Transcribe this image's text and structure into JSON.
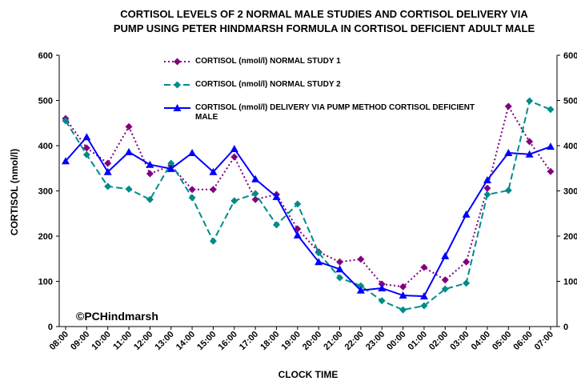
{
  "chart_data": {
    "type": "line",
    "title": [
      "CORTISOL LEVELS OF 2 NORMAL MALE STUDIES AND CORTISOL DELIVERY VIA",
      "PUMP USING PETER HINDMARSH FORMULA IN CORTISOL DEFICIENT ADULT MALE"
    ],
    "x_label": "CLOCK TIME",
    "y_label": "CORTISOL (nmol/l)",
    "annotation": "©PCHindmarsh",
    "categories": [
      "08:00",
      "09:00",
      "10:00",
      "11:00",
      "12:00",
      "13:00",
      "14:00",
      "15:00",
      "16:00",
      "17:00",
      "18:00",
      "19:00",
      "20:00",
      "21:00",
      "22:00",
      "23:00",
      "00:00",
      "01:00",
      "02:00",
      "03:00",
      "04:00",
      "05:00",
      "06:00",
      "07:00"
    ],
    "ylim": [
      0,
      600
    ],
    "yticks": [
      0,
      100,
      200,
      300,
      400,
      500,
      600
    ],
    "y2lim": [
      0,
      600
    ],
    "y2ticks": [
      0,
      100,
      200,
      300,
      400,
      500,
      600
    ],
    "grid": false,
    "series": [
      {
        "name": "CORTISOL (nmol/l) NORMAL STUDY 1",
        "color": "#800080",
        "dash": "dotted",
        "marker": "diamond",
        "values": [
          460,
          395,
          361,
          442,
          338,
          356,
          303,
          303,
          375,
          281,
          292,
          216,
          165,
          143,
          149,
          94,
          88,
          131,
          103,
          143,
          306,
          487,
          409,
          343
        ]
      },
      {
        "name": "CORTISOL (nmol/l) NORMAL STUDY 2",
        "color": "#008b8b",
        "dash": "dashed",
        "marker": "diamond",
        "values": [
          455,
          380,
          310,
          304,
          281,
          361,
          285,
          189,
          278,
          294,
          225,
          271,
          163,
          108,
          90,
          57,
          37,
          46,
          83,
          96,
          292,
          301,
          499,
          480
        ]
      },
      {
        "name": "CORTISOL (nmol/l) DELIVERY VIA PUMP METHOD CORTISOL DEFICIENT MALE",
        "color": "#0000ff",
        "dash": "solid",
        "marker": "triangle",
        "values": [
          366,
          419,
          342,
          386,
          358,
          349,
          384,
          342,
          393,
          326,
          287,
          202,
          143,
          127,
          80,
          85,
          69,
          67,
          156,
          248,
          324,
          384,
          381,
          398
        ]
      }
    ]
  }
}
